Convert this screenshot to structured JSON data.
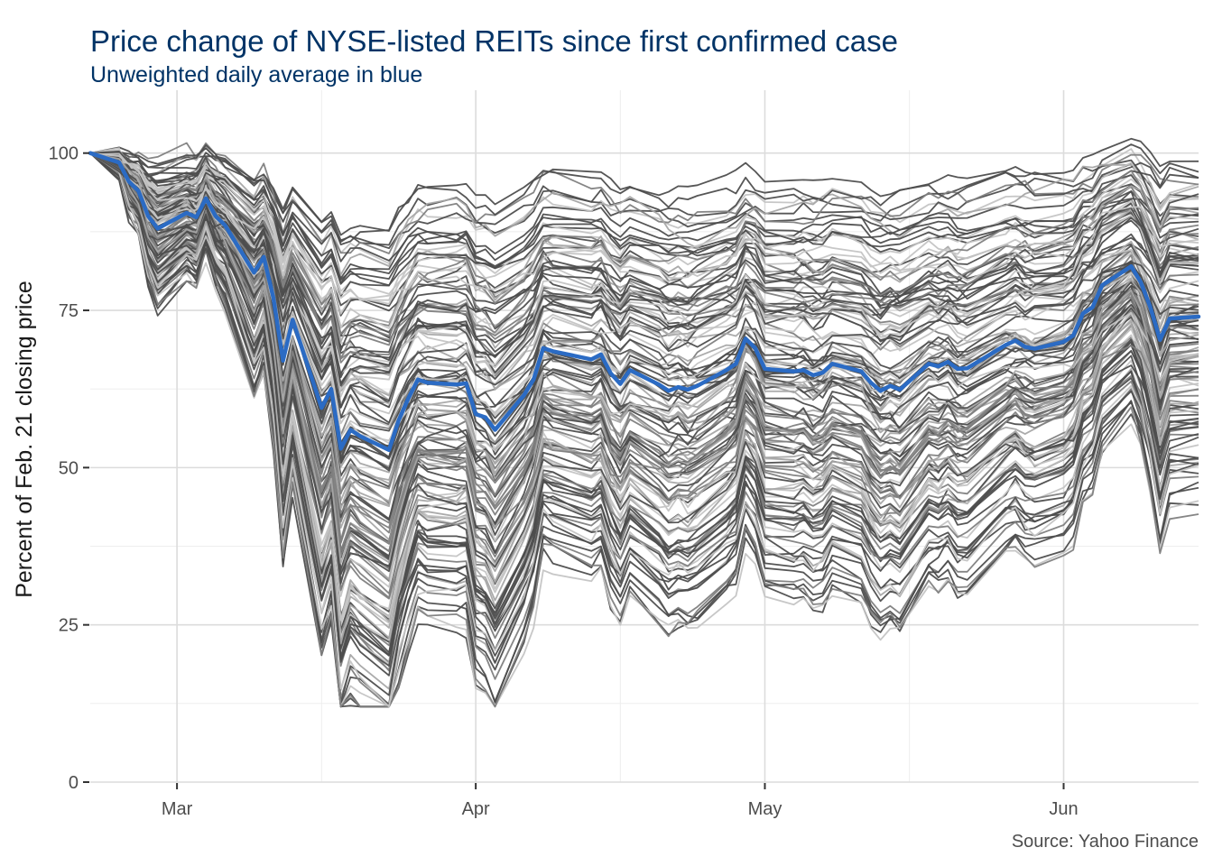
{
  "chart_data": {
    "type": "line",
    "title": "Price change of NYSE-listed REITs since first confirmed case",
    "subtitle": "Unweighted daily average in blue",
    "ylabel": "Percent of Feb. 21 closing price",
    "xlabel": "",
    "caption": "Source: Yahoo Finance",
    "x_range": [
      "2020-02-21",
      "2020-06-15"
    ],
    "x_ticks": [
      {
        "date": "2020-03-01",
        "label": "Mar"
      },
      {
        "date": "2020-04-01",
        "label": "Apr"
      },
      {
        "date": "2020-05-01",
        "label": "May"
      },
      {
        "date": "2020-06-01",
        "label": "Jun"
      }
    ],
    "ylim": [
      0,
      110
    ],
    "y_ticks": [
      0,
      25,
      50,
      75,
      100
    ],
    "grid": true,
    "colors": {
      "average": "#2b6bc4",
      "series_dark": "#555555",
      "series_light": "#bfbfbf",
      "title": "#003366"
    },
    "average_series": {
      "name": "Unweighted daily average",
      "points": [
        [
          "2020-02-21",
          100
        ],
        [
          "2020-02-24",
          98.5
        ],
        [
          "2020-02-25",
          95.5
        ],
        [
          "2020-02-26",
          94
        ],
        [
          "2020-02-27",
          90
        ],
        [
          "2020-02-28",
          88
        ],
        [
          "2020-03-02",
          90.5
        ],
        [
          "2020-03-03",
          89.8
        ],
        [
          "2020-03-04",
          92.8
        ],
        [
          "2020-03-05",
          90
        ],
        [
          "2020-03-06",
          88.5
        ],
        [
          "2020-03-09",
          81
        ],
        [
          "2020-03-10",
          83.5
        ],
        [
          "2020-03-11",
          77
        ],
        [
          "2020-03-12",
          67
        ],
        [
          "2020-03-13",
          73.5
        ],
        [
          "2020-03-16",
          59.5
        ],
        [
          "2020-03-17",
          62.5
        ],
        [
          "2020-03-18",
          53
        ],
        [
          "2020-03-19",
          56
        ],
        [
          "2020-03-20",
          55
        ],
        [
          "2020-03-23",
          52.8
        ],
        [
          "2020-03-24",
          57.5
        ],
        [
          "2020-03-25",
          61
        ],
        [
          "2020-03-26",
          64
        ],
        [
          "2020-03-27",
          63.5
        ],
        [
          "2020-03-30",
          63.2
        ],
        [
          "2020-03-31",
          63.4
        ],
        [
          "2020-04-01",
          58.5
        ],
        [
          "2020-04-02",
          58
        ],
        [
          "2020-04-03",
          56
        ],
        [
          "2020-04-06",
          61.5
        ],
        [
          "2020-04-07",
          64
        ],
        [
          "2020-04-08",
          69
        ],
        [
          "2020-04-09",
          68.5
        ],
        [
          "2020-04-13",
          67.2
        ],
        [
          "2020-04-14",
          68
        ],
        [
          "2020-04-15",
          65
        ],
        [
          "2020-04-16",
          63.3
        ],
        [
          "2020-04-17",
          65.5
        ],
        [
          "2020-04-20",
          63.2
        ],
        [
          "2020-04-21",
          62.2
        ],
        [
          "2020-04-22",
          62.8
        ],
        [
          "2020-04-23",
          62.4
        ],
        [
          "2020-04-24",
          63
        ],
        [
          "2020-04-27",
          65.5
        ],
        [
          "2020-04-28",
          66.5
        ],
        [
          "2020-04-29",
          70.5
        ],
        [
          "2020-04-30",
          69
        ],
        [
          "2020-05-01",
          65.7
        ],
        [
          "2020-05-04",
          65.3
        ],
        [
          "2020-05-05",
          65.5
        ],
        [
          "2020-05-06",
          64.7
        ],
        [
          "2020-05-07",
          65.1
        ],
        [
          "2020-05-08",
          66.5
        ],
        [
          "2020-05-11",
          65.3
        ],
        [
          "2020-05-12",
          63.5
        ],
        [
          "2020-05-13",
          62.2
        ],
        [
          "2020-05-14",
          63
        ],
        [
          "2020-05-15",
          62.4
        ],
        [
          "2020-05-18",
          66.5
        ],
        [
          "2020-05-19",
          66.1
        ],
        [
          "2020-05-20",
          66.8
        ],
        [
          "2020-05-21",
          65.7
        ],
        [
          "2020-05-22",
          65.8
        ],
        [
          "2020-05-26",
          69.5
        ],
        [
          "2020-05-27",
          70.2
        ],
        [
          "2020-05-28",
          69.2
        ],
        [
          "2020-05-29",
          68.9
        ],
        [
          "2020-06-01",
          70
        ],
        [
          "2020-06-02",
          71
        ],
        [
          "2020-06-03",
          74.5
        ],
        [
          "2020-06-04",
          75.5
        ],
        [
          "2020-06-05",
          79
        ],
        [
          "2020-06-08",
          82
        ],
        [
          "2020-06-09",
          79.5
        ],
        [
          "2020-06-10",
          75.5
        ],
        [
          "2020-06-11",
          70.3
        ],
        [
          "2020-06-12",
          73.7
        ],
        [
          "2020-06-15",
          74
        ]
      ]
    },
    "individual_series_shape": {
      "drawn_count": 140,
      "spread_description_note": ""
    }
  }
}
